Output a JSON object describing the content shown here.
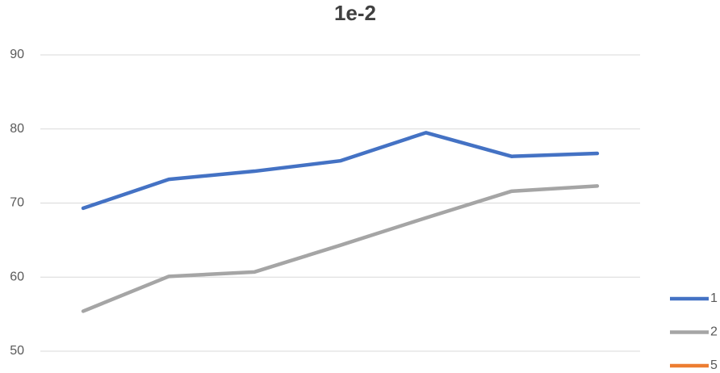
{
  "chart_data": {
    "type": "line",
    "title": "1e-2",
    "categories": [
      null,
      null,
      null,
      null,
      null,
      null,
      null
    ],
    "series": [
      {
        "name": "1",
        "color": "#4472c4",
        "values": [
          69.3,
          73.2,
          74.3,
          75.7,
          79.5,
          76.3,
          76.7
        ]
      },
      {
        "name": "2",
        "color": "#a5a5a5",
        "values": [
          55.4,
          60.1,
          60.7,
          64.3,
          68.0,
          71.6,
          72.3
        ]
      },
      {
        "name": "5",
        "color": "#ed7d31",
        "values": [
          null,
          null,
          null,
          null,
          null,
          null,
          null
        ]
      }
    ],
    "ylim": [
      50,
      90
    ],
    "yticks": [
      50,
      60,
      70,
      80,
      90
    ],
    "grid": true,
    "legend": "right"
  }
}
